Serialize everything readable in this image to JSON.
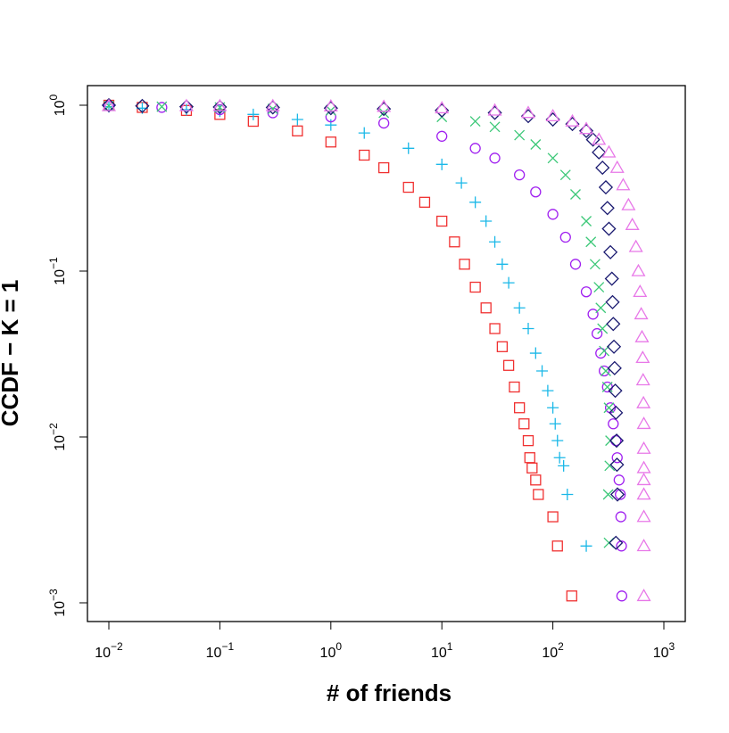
{
  "chart_data": {
    "type": "scatter",
    "title": "",
    "xlabel": "# of friends",
    "ylabel": "CCDF − K = 1",
    "xscale": "log",
    "yscale": "log",
    "xlim": [
      0.01,
      1000
    ],
    "ylim": [
      0.001,
      1
    ],
    "x_ticks": [
      {
        "value": 0.01,
        "base": "10",
        "exp": "−2"
      },
      {
        "value": 0.1,
        "base": "10",
        "exp": "−1"
      },
      {
        "value": 1,
        "base": "10",
        "exp": "0"
      },
      {
        "value": 10,
        "base": "10",
        "exp": "1"
      },
      {
        "value": 100,
        "base": "10",
        "exp": "2"
      },
      {
        "value": 1000,
        "base": "10",
        "exp": "3"
      }
    ],
    "y_ticks": [
      {
        "value": 1,
        "base": "10",
        "exp": "0"
      },
      {
        "value": 0.1,
        "base": "10",
        "exp": "−1"
      },
      {
        "value": 0.01,
        "base": "10",
        "exp": "−2"
      },
      {
        "value": 0.001,
        "base": "10",
        "exp": "−3"
      }
    ],
    "series": [
      {
        "name": "red-squares",
        "marker": "square",
        "color": "#f03030",
        "points": [
          [
            0.01,
            1.0
          ],
          [
            0.02,
            0.97
          ],
          [
            0.05,
            0.93
          ],
          [
            0.1,
            0.88
          ],
          [
            0.2,
            0.8
          ],
          [
            0.5,
            0.7
          ],
          [
            1,
            0.6
          ],
          [
            2,
            0.5
          ],
          [
            3,
            0.42
          ],
          [
            5,
            0.32
          ],
          [
            7,
            0.26
          ],
          [
            10,
            0.2
          ],
          [
            13,
            0.15
          ],
          [
            16,
            0.11
          ],
          [
            20,
            0.08
          ],
          [
            25,
            0.06
          ],
          [
            30,
            0.045
          ],
          [
            35,
            0.035
          ],
          [
            40,
            0.027
          ],
          [
            45,
            0.02
          ],
          [
            50,
            0.015
          ],
          [
            55,
            0.012
          ],
          [
            60,
            0.0095
          ],
          [
            62,
            0.0075
          ],
          [
            65,
            0.0065
          ],
          [
            70,
            0.0055
          ],
          [
            74,
            0.0045
          ],
          [
            100,
            0.0033
          ],
          [
            110,
            0.0022
          ],
          [
            148,
            0.0011
          ]
        ]
      },
      {
        "name": "cyan-plus",
        "marker": "plus",
        "color": "#1ab8e8",
        "points": [
          [
            0.01,
            0.98
          ],
          [
            0.02,
            0.96
          ],
          [
            0.05,
            0.94
          ],
          [
            0.1,
            0.92
          ],
          [
            0.2,
            0.88
          ],
          [
            0.5,
            0.82
          ],
          [
            1,
            0.76
          ],
          [
            2,
            0.68
          ],
          [
            5,
            0.55
          ],
          [
            10,
            0.44
          ],
          [
            15,
            0.34
          ],
          [
            20,
            0.26
          ],
          [
            25,
            0.2
          ],
          [
            30,
            0.15
          ],
          [
            35,
            0.11
          ],
          [
            40,
            0.085
          ],
          [
            50,
            0.06
          ],
          [
            60,
            0.045
          ],
          [
            70,
            0.032
          ],
          [
            80,
            0.025
          ],
          [
            90,
            0.019
          ],
          [
            100,
            0.015
          ],
          [
            105,
            0.012
          ],
          [
            110,
            0.0095
          ],
          [
            115,
            0.0075
          ],
          [
            125,
            0.0067
          ],
          [
            135,
            0.0045
          ],
          [
            200,
            0.0022
          ]
        ]
      },
      {
        "name": "purple-circles",
        "marker": "circle",
        "color": "#a020f0",
        "points": [
          [
            0.01,
            0.99
          ],
          [
            0.03,
            0.97
          ],
          [
            0.1,
            0.94
          ],
          [
            0.3,
            0.9
          ],
          [
            1,
            0.85
          ],
          [
            3,
            0.78
          ],
          [
            10,
            0.65
          ],
          [
            20,
            0.55
          ],
          [
            30,
            0.48
          ],
          [
            50,
            0.38
          ],
          [
            70,
            0.3
          ],
          [
            100,
            0.22
          ],
          [
            130,
            0.16
          ],
          [
            160,
            0.11
          ],
          [
            200,
            0.075
          ],
          [
            230,
            0.055
          ],
          [
            250,
            0.042
          ],
          [
            270,
            0.032
          ],
          [
            290,
            0.025
          ],
          [
            310,
            0.02
          ],
          [
            330,
            0.015
          ],
          [
            350,
            0.012
          ],
          [
            370,
            0.0095
          ],
          [
            380,
            0.0075
          ],
          [
            395,
            0.0055
          ],
          [
            405,
            0.0045
          ],
          [
            410,
            0.0033
          ],
          [
            415,
            0.0022
          ],
          [
            418,
            0.0011
          ]
        ]
      },
      {
        "name": "green-x",
        "marker": "x",
        "color": "#3cc878",
        "points": [
          [
            0.01,
            0.99
          ],
          [
            0.03,
            0.98
          ],
          [
            0.1,
            0.97
          ],
          [
            0.3,
            0.95
          ],
          [
            1,
            0.93
          ],
          [
            3,
            0.9
          ],
          [
            10,
            0.85
          ],
          [
            20,
            0.8
          ],
          [
            30,
            0.74
          ],
          [
            50,
            0.66
          ],
          [
            70,
            0.58
          ],
          [
            100,
            0.48
          ],
          [
            130,
            0.38
          ],
          [
            160,
            0.29
          ],
          [
            200,
            0.2
          ],
          [
            220,
            0.15
          ],
          [
            240,
            0.11
          ],
          [
            260,
            0.08
          ],
          [
            270,
            0.06
          ],
          [
            280,
            0.045
          ],
          [
            290,
            0.033
          ],
          [
            300,
            0.025
          ],
          [
            310,
            0.02
          ],
          [
            320,
            0.015
          ],
          [
            330,
            0.0095
          ],
          [
            325,
            0.0067
          ],
          [
            315,
            0.0045
          ],
          [
            320,
            0.0023
          ]
        ]
      },
      {
        "name": "navy-diamonds",
        "marker": "diamond",
        "color": "#1a1a70",
        "points": [
          [
            0.01,
            1.0
          ],
          [
            0.02,
            0.99
          ],
          [
            0.05,
            0.98
          ],
          [
            0.1,
            0.975
          ],
          [
            0.3,
            0.97
          ],
          [
            1,
            0.96
          ],
          [
            3,
            0.95
          ],
          [
            10,
            0.93
          ],
          [
            30,
            0.9
          ],
          [
            60,
            0.86
          ],
          [
            100,
            0.82
          ],
          [
            150,
            0.77
          ],
          [
            200,
            0.7
          ],
          [
            230,
            0.62
          ],
          [
            260,
            0.52
          ],
          [
            280,
            0.42
          ],
          [
            300,
            0.32
          ],
          [
            310,
            0.24
          ],
          [
            320,
            0.18
          ],
          [
            330,
            0.13
          ],
          [
            340,
            0.09
          ],
          [
            345,
            0.065
          ],
          [
            350,
            0.048
          ],
          [
            355,
            0.035
          ],
          [
            360,
            0.026
          ],
          [
            365,
            0.019
          ],
          [
            370,
            0.014
          ],
          [
            375,
            0.0095
          ],
          [
            378,
            0.0068
          ],
          [
            382,
            0.0045
          ],
          [
            370,
            0.0023
          ]
        ]
      },
      {
        "name": "pink-triangles",
        "marker": "triangle",
        "color": "#e878e8",
        "points": [
          [
            0.01,
            0.99
          ],
          [
            0.05,
            0.99
          ],
          [
            0.1,
            0.99
          ],
          [
            0.3,
            0.99
          ],
          [
            1,
            0.985
          ],
          [
            3,
            0.98
          ],
          [
            10,
            0.96
          ],
          [
            30,
            0.93
          ],
          [
            60,
            0.9
          ],
          [
            100,
            0.86
          ],
          [
            150,
            0.8
          ],
          [
            200,
            0.72
          ],
          [
            260,
            0.62
          ],
          [
            320,
            0.52
          ],
          [
            380,
            0.42
          ],
          [
            430,
            0.33
          ],
          [
            480,
            0.25
          ],
          [
            520,
            0.19
          ],
          [
            560,
            0.14
          ],
          [
            590,
            0.1
          ],
          [
            610,
            0.075
          ],
          [
            625,
            0.055
          ],
          [
            635,
            0.04
          ],
          [
            645,
            0.03
          ],
          [
            650,
            0.022
          ],
          [
            655,
            0.016
          ],
          [
            660,
            0.012
          ],
          [
            660,
            0.0085
          ],
          [
            660,
            0.0065
          ],
          [
            660,
            0.0055
          ],
          [
            660,
            0.0045
          ],
          [
            660,
            0.0033
          ],
          [
            660,
            0.0022
          ],
          [
            660,
            0.0011
          ]
        ]
      }
    ]
  }
}
